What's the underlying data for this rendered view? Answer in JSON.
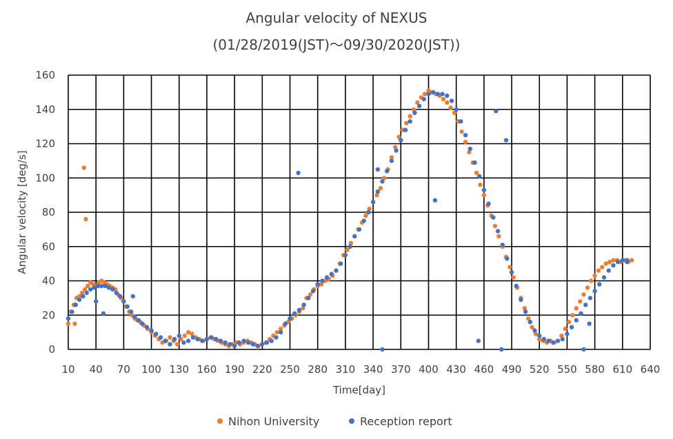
{
  "chart_data": {
    "type": "scatter",
    "title_line1": "Angular velocity of NEXUS",
    "title_line2": "(01/28/2019(JST)～09/30/2020(JST))",
    "xlabel": "Time[day]",
    "ylabel": "Angular velocity [deg/s]",
    "xlim": [
      10,
      640
    ],
    "ylim": [
      0,
      160
    ],
    "x_ticks": [
      10,
      40,
      70,
      100,
      130,
      160,
      190,
      220,
      250,
      280,
      310,
      340,
      370,
      400,
      430,
      460,
      490,
      520,
      550,
      580,
      610,
      640
    ],
    "y_ticks": [
      0,
      20,
      40,
      60,
      80,
      100,
      120,
      140,
      160
    ],
    "grid": true,
    "legend_position": "bottom",
    "series": [
      {
        "name": "Nihon University",
        "color": "#ED7D31",
        "x": [
          10,
          13,
          16,
          19,
          22,
          25,
          28,
          31,
          34,
          37,
          40,
          43,
          46,
          49,
          52,
          55,
          58,
          61,
          64,
          67,
          70,
          73,
          76,
          79,
          82,
          85,
          88,
          92,
          96,
          100,
          104,
          108,
          112,
          116,
          120,
          124,
          128,
          132,
          136,
          140,
          144,
          148,
          152,
          156,
          160,
          164,
          168,
          172,
          176,
          180,
          184,
          188,
          192,
          196,
          200,
          204,
          208,
          212,
          216,
          220,
          224,
          228,
          232,
          236,
          240,
          244,
          248,
          252,
          256,
          260,
          264,
          268,
          272,
          276,
          280,
          284,
          288,
          292,
          296,
          300,
          304,
          308,
          312,
          316,
          320,
          324,
          328,
          332,
          336,
          340,
          344,
          348,
          352,
          356,
          360,
          364,
          368,
          372,
          376,
          380,
          384,
          388,
          392,
          396,
          400,
          404,
          408,
          412,
          416,
          420,
          424,
          428,
          432,
          436,
          440,
          444,
          448,
          452,
          456,
          460,
          464,
          468,
          472,
          476,
          480,
          484,
          488,
          492,
          496,
          500,
          504,
          508,
          512,
          516,
          520,
          524,
          528,
          532,
          536,
          540,
          544,
          548,
          552,
          556,
          560,
          564,
          568,
          572,
          576,
          580,
          584,
          588,
          592,
          596,
          600,
          604,
          608,
          612,
          616,
          620,
          27,
          29,
          17
        ],
        "y": [
          15,
          22,
          26,
          30,
          31,
          33,
          35,
          37,
          39,
          38,
          37,
          39,
          40,
          39,
          38,
          37,
          36,
          35,
          32,
          30,
          28,
          25,
          22,
          20,
          18,
          17,
          16,
          14,
          12,
          10,
          8,
          6,
          4,
          5,
          7,
          5,
          3,
          6,
          8,
          10,
          9,
          7,
          6,
          5,
          6,
          7,
          6,
          5,
          4,
          3,
          2,
          3,
          4,
          3,
          4,
          5,
          4,
          3,
          2,
          3,
          4,
          6,
          8,
          10,
          12,
          14,
          16,
          18,
          20,
          22,
          24,
          30,
          32,
          35,
          37,
          38,
          40,
          41,
          43,
          46,
          50,
          55,
          58,
          62,
          66,
          70,
          74,
          78,
          82,
          86,
          90,
          94,
          100,
          105,
          112,
          118,
          124,
          128,
          132,
          136,
          140,
          144,
          147,
          149,
          151,
          150,
          149,
          148,
          146,
          144,
          141,
          138,
          133,
          127,
          121,
          115,
          109,
          103,
          96,
          90,
          84,
          78,
          72,
          66,
          60,
          54,
          48,
          42,
          36,
          30,
          24,
          18,
          13,
          9,
          6,
          5,
          4,
          5,
          4,
          5,
          8,
          12,
          16,
          20,
          24,
          28,
          32,
          36,
          40,
          43,
          46,
          48,
          50,
          51,
          52,
          52,
          51,
          52,
          51,
          52,
          106,
          76,
          15
        ]
      },
      {
        "name": "Reception report",
        "color": "#4472C4",
        "x": [
          10,
          14,
          18,
          22,
          26,
          30,
          34,
          38,
          42,
          46,
          50,
          54,
          58,
          62,
          66,
          70,
          74,
          78,
          82,
          86,
          90,
          95,
          100,
          105,
          110,
          115,
          120,
          125,
          130,
          135,
          140,
          145,
          150,
          155,
          160,
          165,
          170,
          175,
          180,
          185,
          190,
          195,
          200,
          205,
          210,
          215,
          220,
          225,
          230,
          235,
          240,
          245,
          250,
          255,
          260,
          265,
          270,
          275,
          280,
          285,
          290,
          295,
          300,
          305,
          310,
          315,
          320,
          325,
          330,
          335,
          340,
          345,
          350,
          355,
          360,
          365,
          370,
          375,
          380,
          385,
          390,
          395,
          400,
          405,
          410,
          415,
          420,
          425,
          430,
          435,
          440,
          445,
          450,
          455,
          460,
          465,
          470,
          475,
          480,
          485,
          490,
          495,
          500,
          505,
          510,
          515,
          520,
          525,
          530,
          535,
          540,
          545,
          550,
          555,
          560,
          565,
          570,
          575,
          580,
          585,
          590,
          595,
          600,
          605,
          610,
          615,
          40,
          48,
          80,
          259,
          345,
          350,
          407,
          454,
          473,
          479,
          484,
          568,
          574,
          615
        ],
        "y": [
          18,
          22,
          26,
          29,
          31,
          33,
          35,
          36,
          37,
          37,
          37,
          36,
          35,
          33,
          31,
          28,
          25,
          22,
          19,
          17,
          15,
          13,
          11,
          9,
          7,
          5,
          3,
          6,
          8,
          4,
          5,
          7,
          6,
          5,
          6,
          7,
          6,
          5,
          4,
          3,
          2,
          4,
          5,
          4,
          3,
          2,
          3,
          4,
          5,
          7,
          10,
          15,
          18,
          21,
          23,
          26,
          30,
          34,
          38,
          40,
          42,
          44,
          46,
          50,
          55,
          60,
          66,
          70,
          75,
          80,
          86,
          92,
          98,
          104,
          110,
          116,
          122,
          128,
          133,
          138,
          142,
          146,
          149,
          150,
          149,
          149,
          148,
          145,
          140,
          133,
          125,
          117,
          109,
          101,
          93,
          85,
          77,
          69,
          61,
          53,
          45,
          37,
          29,
          22,
          16,
          11,
          8,
          6,
          5,
          4,
          5,
          6,
          9,
          13,
          17,
          21,
          26,
          30,
          34,
          38,
          42,
          46,
          49,
          51,
          52,
          52,
          28,
          21,
          31,
          103,
          105,
          0,
          87,
          5,
          139,
          0,
          122,
          0,
          15,
          51
        ]
      }
    ]
  }
}
